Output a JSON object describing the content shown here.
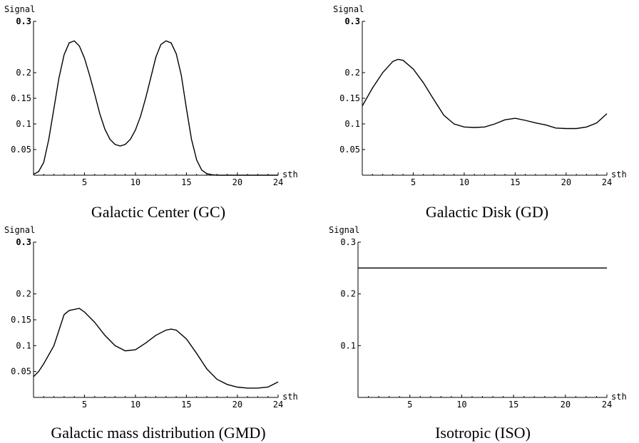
{
  "chart_data": [
    {
      "type": "line",
      "title": "Galactic Center (GC)",
      "xlabel": "sth",
      "ylabel": "Signal",
      "xlim": [
        0,
        24
      ],
      "ylim": [
        0,
        0.3
      ],
      "xticks": [
        5,
        10,
        15,
        20,
        24
      ],
      "yticks": [
        0.05,
        0.1,
        0.15,
        0.2,
        0.3
      ],
      "ytick_labels": [
        "0.05",
        "0.1",
        "0.15",
        "0.2",
        "0.3"
      ],
      "series": [
        {
          "x": [
            0,
            0.5,
            1,
            1.5,
            2,
            2.5,
            3,
            3.5,
            4,
            4.5,
            5,
            5.5,
            6,
            6.5,
            7,
            7.5,
            8,
            8.5,
            9,
            9.5,
            10,
            10.5,
            11,
            11.5,
            12,
            12.5,
            13,
            13.5,
            14,
            14.5,
            15,
            15.5,
            16,
            16.5,
            17,
            17.5,
            18,
            19,
            20,
            21,
            22,
            23,
            24
          ],
          "y": [
            0.002,
            0.007,
            0.025,
            0.07,
            0.13,
            0.19,
            0.235,
            0.258,
            0.262,
            0.252,
            0.228,
            0.195,
            0.158,
            0.12,
            0.09,
            0.07,
            0.06,
            0.057,
            0.06,
            0.07,
            0.088,
            0.115,
            0.15,
            0.19,
            0.23,
            0.255,
            0.262,
            0.258,
            0.237,
            0.195,
            0.13,
            0.07,
            0.03,
            0.01,
            0.003,
            0.001,
            0,
            0,
            0,
            0,
            0,
            0,
            0
          ]
        }
      ]
    },
    {
      "type": "line",
      "title": "Galactic Disk (GD)",
      "xlabel": "sth",
      "ylabel": "Signal",
      "xlim": [
        0,
        24
      ],
      "ylim": [
        0,
        0.3
      ],
      "xticks": [
        5,
        10,
        15,
        20,
        24
      ],
      "yticks": [
        0.05,
        0.1,
        0.15,
        0.2,
        0.3
      ],
      "ytick_labels": [
        "0.05",
        "0.1",
        "0.15",
        "0.2",
        "0.3"
      ],
      "series": [
        {
          "x": [
            0,
            1,
            2,
            3,
            3.5,
            4,
            5,
            6,
            7,
            8,
            9,
            10,
            11,
            12,
            13,
            14,
            15,
            16,
            17,
            18,
            19,
            20,
            21,
            22,
            23,
            24
          ],
          "y": [
            0.135,
            0.17,
            0.2,
            0.222,
            0.226,
            0.224,
            0.207,
            0.18,
            0.148,
            0.117,
            0.1,
            0.094,
            0.093,
            0.094,
            0.1,
            0.108,
            0.111,
            0.107,
            0.102,
            0.098,
            0.092,
            0.091,
            0.091,
            0.094,
            0.102,
            0.12
          ]
        }
      ]
    },
    {
      "type": "line",
      "title": "Galactic mass distribution (GMD)",
      "xlabel": "sth",
      "ylabel": "Signal",
      "xlim": [
        0,
        24
      ],
      "ylim": [
        0,
        0.3
      ],
      "xticks": [
        5,
        10,
        15,
        20,
        24
      ],
      "yticks": [
        0.05,
        0.1,
        0.15,
        0.2,
        0.3
      ],
      "ytick_labels": [
        "0.05",
        "0.1",
        "0.15",
        "0.2",
        "0.3"
      ],
      "series": [
        {
          "x": [
            0,
            0.5,
            1,
            2,
            3,
            3.5,
            4.5,
            5,
            6,
            7,
            8,
            9,
            10,
            11,
            12,
            13,
            13.5,
            14,
            15,
            16,
            17,
            18,
            19,
            20,
            21,
            22,
            23,
            24
          ],
          "y": [
            0.04,
            0.05,
            0.065,
            0.1,
            0.16,
            0.168,
            0.172,
            0.165,
            0.145,
            0.12,
            0.1,
            0.09,
            0.092,
            0.105,
            0.12,
            0.13,
            0.132,
            0.13,
            0.113,
            0.085,
            0.055,
            0.035,
            0.025,
            0.02,
            0.018,
            0.018,
            0.02,
            0.03
          ]
        }
      ]
    },
    {
      "type": "line",
      "title": "Isotropic (ISO)",
      "xlabel": "sth",
      "ylabel": "Signal",
      "xlim": [
        0,
        24
      ],
      "ylim": [
        0,
        0.3
      ],
      "xticks": [
        5,
        10,
        15,
        20,
        24
      ],
      "yticks": [
        0.1,
        0.2,
        0.3
      ],
      "ytick_labels": [
        "0.1",
        "0.2",
        "0.3"
      ],
      "series": [
        {
          "x": [
            0,
            24
          ],
          "y": [
            0.25,
            0.25
          ]
        }
      ]
    }
  ]
}
